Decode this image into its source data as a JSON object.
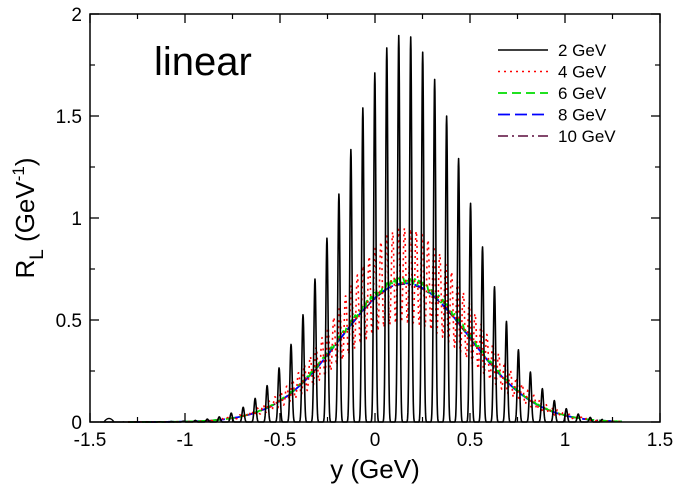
{
  "chart_data": {
    "type": "line",
    "annotation": "linear",
    "xlabel": "y (GeV)",
    "ylabel_main": "R",
    "ylabel_sub": "L",
    "ylabel_unit_open": " (GeV",
    "ylabel_unit_exp": "-1",
    "ylabel_unit_close": ")",
    "xlim": [
      -1.5,
      1.5
    ],
    "ylim": [
      0,
      2
    ],
    "x_ticks": [
      -1.5,
      -1,
      -0.5,
      0,
      0.5,
      1,
      1.5
    ],
    "x_tick_labels": [
      "-1.5",
      "-1",
      "-0.5",
      "0",
      "0.5",
      "1",
      "1.5"
    ],
    "y_ticks": [
      0,
      0.5,
      1,
      1.5,
      2
    ],
    "y_tick_labels": [
      "0",
      "0.5",
      "1",
      "1.5",
      "2"
    ],
    "grid": false,
    "legend_position": "top-right",
    "series": [
      {
        "name": "2 GeV",
        "color": "#000000",
        "dash": "",
        "width": 1.6,
        "envelope": {
          "center": 0.15,
          "width": 0.33,
          "amplitude": 1.9
        },
        "oscillation": {
          "period": 0.063,
          "phase": 0.012,
          "power": 3,
          "floor": 0.0
        },
        "x_range": [
          -1.45,
          1.2
        ],
        "extra_peaks": [
          {
            "x": -1.4,
            "y": 0.015
          }
        ],
        "peak_values": [
          {
            "x": -0.75,
            "y": 0.04
          },
          {
            "x": -0.6,
            "y": 0.14
          },
          {
            "x": -0.47,
            "y": 0.3
          },
          {
            "x": -0.34,
            "y": 0.56
          },
          {
            "x": -0.21,
            "y": 0.96
          },
          {
            "x": -0.08,
            "y": 1.34
          },
          {
            "x": 0.05,
            "y": 1.7
          },
          {
            "x": 0.18,
            "y": 1.98
          },
          {
            "x": 0.31,
            "y": 1.83
          },
          {
            "x": 0.44,
            "y": 1.3
          },
          {
            "x": 0.57,
            "y": 0.82
          },
          {
            "x": 0.7,
            "y": 0.42
          },
          {
            "x": 0.83,
            "y": 0.17
          },
          {
            "x": 0.96,
            "y": 0.05
          }
        ]
      },
      {
        "name": "4 GeV",
        "color": "#ff0000",
        "dash": "2 4",
        "width": 1.6,
        "envelope": {
          "center": 0.16,
          "width": 0.34,
          "amplitude": 0.72
        },
        "oscillation": {
          "period": 0.031,
          "phase": 0.0,
          "depth": 0.32
        },
        "x_range": [
          -1.3,
          1.3
        ]
      },
      {
        "name": "6 GeV",
        "color": "#00dd00",
        "dash": "9 5",
        "width": 1.8,
        "envelope": {
          "center": 0.16,
          "width": 0.34,
          "amplitude": 0.695
        },
        "oscillation": {
          "period": 0.021,
          "phase": 0.0,
          "depth": 0.02
        },
        "x_range": [
          -1.3,
          1.3
        ]
      },
      {
        "name": "8 GeV",
        "color": "#0000ff",
        "dash": "12 5",
        "width": 1.8,
        "envelope": {
          "center": 0.16,
          "width": 0.34,
          "amplitude": 0.68
        },
        "oscillation": {
          "period": 0.016,
          "phase": 0.0,
          "depth": 0.0
        },
        "x_range": [
          -1.3,
          1.3
        ]
      },
      {
        "name": "10 GeV",
        "color": "#5a0a3c",
        "dash": "10 4 2 4",
        "width": 1.6,
        "envelope": {
          "center": 0.16,
          "width": 0.34,
          "amplitude": 0.676
        },
        "oscillation": {
          "period": 0.013,
          "phase": 0.0,
          "depth": 0.0
        },
        "x_range": [
          -1.3,
          1.3
        ]
      }
    ]
  }
}
